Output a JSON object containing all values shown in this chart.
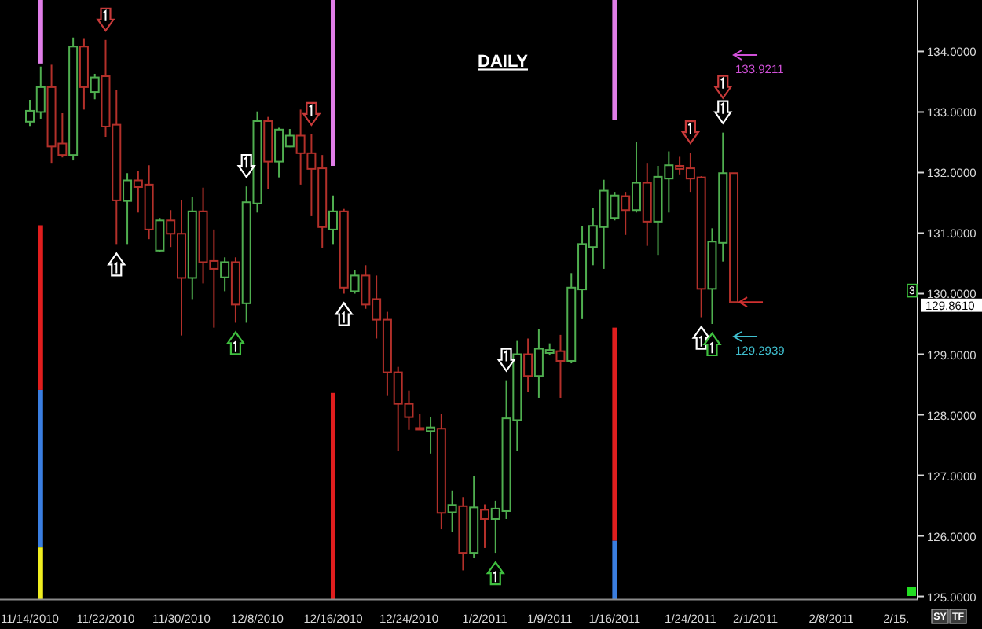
{
  "chart_data": {
    "type": "candlestick",
    "title": "DAILY",
    "categories": [
      "11/14/2010",
      null,
      null,
      null,
      null,
      null,
      null,
      "11/22/2010",
      null,
      null,
      null,
      null,
      null,
      null,
      "11/30/2010",
      null,
      null,
      null,
      null,
      null,
      null,
      "12/8/2010",
      null,
      null,
      null,
      null,
      null,
      null,
      "12/16/2010",
      null,
      null,
      null,
      null,
      null,
      null,
      "12/24/2010",
      null,
      null,
      null,
      null,
      null,
      null,
      "1/2/2011",
      null,
      null,
      null,
      null,
      null,
      "1/9/2011",
      null,
      null,
      null,
      null,
      null,
      "1/16/2011",
      null,
      null,
      null,
      null,
      null,
      null,
      "1/24/2011",
      null,
      null,
      null,
      null,
      null,
      "2/1/2011",
      null,
      null,
      null,
      null,
      null,
      null,
      "2/8/2011",
      null,
      null,
      null,
      null,
      null,
      "2/15.",
      null
    ],
    "ohlc": [
      [
        132.84,
        133.2,
        132.77,
        133.02
      ],
      [
        133.0,
        133.75,
        132.89,
        133.41
      ],
      [
        133.41,
        133.78,
        132.16,
        132.43
      ],
      [
        132.48,
        132.98,
        132.25,
        132.29
      ],
      [
        132.29,
        134.23,
        132.2,
        134.08
      ],
      [
        134.08,
        134.22,
        133.04,
        133.41
      ],
      [
        133.33,
        133.63,
        133.21,
        133.57
      ],
      [
        133.59,
        134.19,
        132.59,
        132.76
      ],
      [
        132.79,
        133.37,
        130.82,
        131.54
      ],
      [
        131.53,
        131.99,
        130.82,
        131.87
      ],
      [
        131.87,
        132.03,
        131.34,
        131.76
      ],
      [
        131.8,
        132.12,
        130.9,
        131.06
      ],
      [
        130.71,
        131.25,
        130.69,
        131.21
      ],
      [
        131.21,
        131.38,
        130.77,
        130.99
      ],
      [
        130.99,
        131.55,
        129.31,
        130.26
      ],
      [
        130.26,
        131.6,
        129.91,
        131.36
      ],
      [
        131.36,
        131.75,
        130.17,
        130.52
      ],
      [
        130.54,
        131.06,
        129.44,
        130.41
      ],
      [
        130.27,
        130.6,
        130.04,
        130.52
      ],
      [
        130.52,
        130.6,
        129.52,
        129.82
      ],
      [
        129.84,
        131.77,
        129.52,
        131.51
      ],
      [
        131.49,
        133.01,
        131.34,
        132.85
      ],
      [
        132.85,
        132.92,
        131.73,
        132.18
      ],
      [
        132.18,
        132.74,
        131.92,
        132.71
      ],
      [
        132.43,
        132.72,
        132.42,
        132.61
      ],
      [
        132.61,
        133.04,
        131.8,
        132.32
      ],
      [
        132.32,
        132.63,
        131.28,
        132.06
      ],
      [
        132.07,
        132.29,
        130.76,
        131.1
      ],
      [
        131.06,
        131.62,
        130.82,
        131.36
      ],
      [
        131.36,
        131.4,
        130.0,
        130.1
      ],
      [
        130.04,
        130.39,
        130.0,
        130.3
      ],
      [
        130.3,
        130.47,
        129.75,
        129.82
      ],
      [
        129.91,
        130.3,
        129.26,
        129.57
      ],
      [
        129.57,
        129.7,
        128.31,
        128.7
      ],
      [
        128.7,
        128.79,
        127.4,
        128.18
      ],
      [
        128.18,
        128.4,
        127.75,
        127.96
      ],
      [
        127.78,
        128.01,
        127.75,
        127.76
      ],
      [
        127.73,
        127.96,
        127.36,
        127.79
      ],
      [
        127.77,
        128.01,
        126.11,
        126.38
      ],
      [
        126.39,
        126.75,
        126.06,
        126.51
      ],
      [
        126.49,
        126.64,
        125.43,
        125.72
      ],
      [
        125.72,
        126.99,
        125.63,
        126.47
      ],
      [
        126.43,
        126.52,
        125.8,
        126.28
      ],
      [
        126.28,
        126.58,
        125.72,
        126.45
      ],
      [
        126.41,
        128.57,
        126.28,
        127.94
      ],
      [
        127.91,
        129.22,
        127.4,
        129.0
      ],
      [
        129.0,
        129.26,
        128.37,
        128.64
      ],
      [
        128.64,
        129.41,
        128.28,
        129.09
      ],
      [
        129.02,
        129.18,
        128.98,
        129.07
      ],
      [
        129.05,
        129.32,
        128.28,
        128.89
      ],
      [
        128.89,
        130.34,
        128.85,
        130.1
      ],
      [
        130.07,
        131.12,
        129.58,
        130.82
      ],
      [
        130.77,
        131.42,
        130.47,
        131.12
      ],
      [
        131.1,
        131.88,
        130.41,
        131.7
      ],
      [
        131.25,
        131.68,
        131.21,
        131.62
      ],
      [
        131.61,
        131.68,
        130.97,
        131.38
      ],
      [
        131.38,
        132.51,
        131.34,
        131.83
      ],
      [
        131.83,
        132.16,
        130.79,
        131.19
      ],
      [
        131.19,
        132.11,
        130.64,
        131.93
      ],
      [
        131.9,
        132.35,
        131.34,
        132.12
      ],
      [
        132.11,
        132.26,
        131.97,
        132.06
      ],
      [
        132.07,
        132.33,
        131.68,
        131.9
      ],
      [
        131.92,
        131.94,
        129.61,
        130.08
      ],
      [
        130.08,
        131.08,
        129.5,
        130.86
      ],
      [
        130.84,
        132.66,
        130.53,
        131.99
      ],
      [
        131.99,
        131.99,
        129.861,
        129.861
      ],
      null,
      null,
      null,
      null,
      null,
      null,
      null,
      null,
      null,
      null,
      null,
      null,
      null,
      null,
      null,
      null
    ],
    "colors": [
      "#4fae4f",
      "#4fae4f",
      "#b3302a",
      "#b3302a",
      "#4fae4f",
      "#b3302a",
      "#4fae4f",
      "#b3302a",
      "#b3302a",
      "#4fae4f",
      "#b3302a",
      "#b3302a",
      "#4fae4f",
      "#b3302a",
      "#b3302a",
      "#4fae4f",
      "#b3302a",
      "#b3302a",
      "#4fae4f",
      "#b3302a",
      "#4fae4f",
      "#4fae4f",
      "#b3302a",
      "#4fae4f",
      "#4fae4f",
      "#b3302a",
      "#b3302a",
      "#b3302a",
      "#4fae4f",
      "#b3302a",
      "#4fae4f",
      "#b3302a",
      "#b3302a",
      "#b3302a",
      "#b3302a",
      "#b3302a",
      "#b3302a",
      "#4fae4f",
      "#b3302a",
      "#4fae4f",
      "#b3302a",
      "#4fae4f",
      "#b3302a",
      "#4fae4f",
      "#4fae4f",
      "#4fae4f",
      "#b3302a",
      "#4fae4f",
      "#4fae4f",
      "#b3302a",
      "#4fae4f",
      "#4fae4f",
      "#4fae4f",
      "#4fae4f",
      "#4fae4f",
      "#b3302a",
      "#4fae4f",
      "#b3302a",
      "#4fae4f",
      "#4fae4f",
      "#b3302a",
      "#b3302a",
      "#b3302a",
      "#4fae4f",
      "#4fae4f",
      "#b3302a",
      null,
      null,
      null,
      null,
      null,
      null,
      null,
      null,
      null,
      null,
      null,
      null,
      null,
      null,
      null,
      null
    ],
    "series": [
      {
        "type": "bar",
        "color": "#e07ee8",
        "base": [
          null,
          133.8,
          null,
          null,
          null,
          null,
          null,
          null,
          null,
          null,
          null,
          null,
          null,
          null,
          null,
          null,
          null,
          null,
          null,
          null,
          null,
          null,
          null,
          null,
          null,
          null,
          null,
          null,
          132.11,
          null,
          null,
          null,
          null,
          null,
          null,
          null,
          null,
          null,
          null,
          null,
          null,
          null,
          null,
          null,
          null,
          null,
          null,
          null,
          null,
          null,
          null,
          null,
          null,
          null,
          132.87,
          null,
          null,
          null,
          null,
          null,
          null,
          null,
          null,
          null,
          null,
          null,
          null,
          null,
          null,
          null,
          null,
          null,
          null,
          null,
          null,
          null,
          null,
          null,
          null,
          null,
          null,
          null
        ],
        "values": [
          null,
          1.05,
          null,
          null,
          null,
          null,
          null,
          null,
          null,
          null,
          null,
          null,
          null,
          null,
          null,
          null,
          null,
          null,
          null,
          null,
          null,
          null,
          null,
          null,
          null,
          null,
          null,
          null,
          2.74,
          null,
          null,
          null,
          null,
          null,
          null,
          null,
          null,
          null,
          null,
          null,
          null,
          null,
          null,
          null,
          null,
          null,
          null,
          null,
          null,
          null,
          null,
          null,
          null,
          null,
          1.98,
          null,
          null,
          null,
          null,
          null,
          null,
          null,
          null,
          null,
          null,
          null,
          null,
          null,
          null,
          null,
          null,
          null,
          null,
          null,
          null,
          null,
          null,
          null,
          null,
          null,
          null,
          null
        ]
      },
      {
        "type": "bar",
        "color": "#e01e1e",
        "base": [
          null,
          128.41,
          null,
          null,
          null,
          null,
          null,
          null,
          null,
          null,
          null,
          null,
          null,
          null,
          null,
          null,
          null,
          null,
          null,
          null,
          null,
          null,
          null,
          null,
          null,
          null,
          null,
          null,
          124.95,
          null,
          null,
          null,
          null,
          null,
          null,
          null,
          null,
          null,
          null,
          null,
          null,
          null,
          null,
          null,
          null,
          null,
          null,
          null,
          null,
          null,
          null,
          null,
          null,
          null,
          125.92,
          null,
          null,
          null,
          null,
          null,
          null,
          null,
          null,
          null,
          null,
          null,
          null,
          null,
          null,
          null,
          null,
          null,
          null,
          null,
          null,
          null,
          null,
          null,
          null,
          null,
          null,
          null
        ],
        "values": [
          null,
          2.72,
          null,
          null,
          null,
          null,
          null,
          null,
          null,
          null,
          null,
          null,
          null,
          null,
          null,
          null,
          null,
          null,
          null,
          null,
          null,
          null,
          null,
          null,
          null,
          null,
          null,
          null,
          3.41,
          null,
          null,
          null,
          null,
          null,
          null,
          null,
          null,
          null,
          null,
          null,
          null,
          null,
          null,
          null,
          null,
          null,
          null,
          null,
          null,
          null,
          null,
          null,
          null,
          null,
          3.52,
          null,
          null,
          null,
          null,
          null,
          null,
          null,
          null,
          null,
          null,
          null,
          null,
          null,
          null,
          null,
          null,
          null,
          null,
          null,
          null,
          null,
          null,
          null,
          null,
          null,
          null,
          null
        ]
      },
      {
        "type": "bar",
        "color": "#3a7ee0",
        "base": [
          null,
          125.81,
          null,
          null,
          null,
          null,
          null,
          null,
          null,
          null,
          null,
          null,
          null,
          null,
          null,
          null,
          null,
          null,
          null,
          null,
          null,
          null,
          null,
          null,
          null,
          null,
          null,
          null,
          null,
          null,
          null,
          null,
          null,
          null,
          null,
          null,
          null,
          null,
          null,
          null,
          null,
          null,
          null,
          null,
          null,
          null,
          null,
          null,
          null,
          null,
          null,
          null,
          null,
          null,
          124.95,
          null,
          null,
          null,
          null,
          null,
          null,
          null,
          null,
          null,
          null,
          null,
          null,
          null,
          null,
          null,
          null,
          null,
          null,
          null,
          null,
          null,
          null,
          null,
          null,
          null,
          null,
          null
        ],
        "values": [
          null,
          2.6,
          null,
          null,
          null,
          null,
          null,
          null,
          null,
          null,
          null,
          null,
          null,
          null,
          null,
          null,
          null,
          null,
          null,
          null,
          null,
          null,
          null,
          null,
          null,
          null,
          null,
          null,
          null,
          null,
          null,
          null,
          null,
          null,
          null,
          null,
          null,
          null,
          null,
          null,
          null,
          null,
          null,
          null,
          null,
          null,
          null,
          null,
          null,
          null,
          null,
          null,
          null,
          null,
          0.97,
          null,
          null,
          null,
          null,
          null,
          null,
          null,
          null,
          null,
          null,
          null,
          null,
          null,
          null,
          null,
          null,
          null,
          null,
          null,
          null,
          null,
          null,
          null,
          null,
          null,
          null,
          null
        ]
      },
      {
        "type": "bar",
        "color": "#f0ee20",
        "base": [
          null,
          124.95,
          null,
          null,
          null,
          null,
          null,
          null,
          null,
          null,
          null,
          null,
          null,
          null,
          null,
          null,
          null,
          null,
          null,
          null,
          null,
          null,
          null,
          null,
          null,
          null,
          null,
          null,
          null,
          null,
          null,
          null,
          null,
          null,
          null,
          null,
          null,
          null,
          null,
          null,
          null,
          null,
          null,
          null,
          null,
          null,
          null,
          null,
          null,
          null,
          null,
          null,
          null,
          null,
          null,
          null,
          null,
          null,
          null,
          null,
          null,
          null,
          null,
          null,
          null,
          null,
          null,
          null,
          null,
          null,
          null,
          null,
          null,
          null,
          null,
          null,
          null,
          null,
          null,
          null,
          null,
          null
        ],
        "values": [
          null,
          0.86,
          null,
          null,
          null,
          null,
          null,
          null,
          null,
          null,
          null,
          null,
          null,
          null,
          null,
          null,
          null,
          null,
          null,
          null,
          null,
          null,
          null,
          null,
          null,
          null,
          null,
          null,
          null,
          null,
          null,
          null,
          null,
          null,
          null,
          null,
          null,
          null,
          null,
          null,
          null,
          null,
          null,
          null,
          null,
          null,
          null,
          null,
          null,
          null,
          null,
          null,
          null,
          null,
          null,
          null,
          null,
          null,
          null,
          null,
          null,
          null,
          null,
          null,
          null,
          null,
          null,
          null,
          null,
          null,
          null,
          null,
          null,
          null,
          null,
          null,
          null,
          null,
          null,
          null,
          null,
          null
        ]
      }
    ],
    "ylim": [
      124.95,
      134.85
    ],
    "yticks": [
      {
        "value": 125,
        "label": "125.0000"
      },
      {
        "value": 126,
        "label": "126.0000"
      },
      {
        "value": 127,
        "label": "127.0000"
      },
      {
        "value": 128,
        "label": "128.0000"
      },
      {
        "value": 129,
        "label": "129.0000"
      },
      {
        "value": 130,
        "label": "130.0000"
      },
      {
        "value": 131,
        "label": "131.0000"
      },
      {
        "value": 132,
        "label": "132.0000"
      },
      {
        "value": 133,
        "label": "133.0000"
      },
      {
        "value": 134,
        "label": "134.0000"
      }
    ],
    "annotations": [
      "133.9211",
      "129.2939",
      "129.8610",
      "3",
      "SY",
      "TF"
    ]
  }
}
